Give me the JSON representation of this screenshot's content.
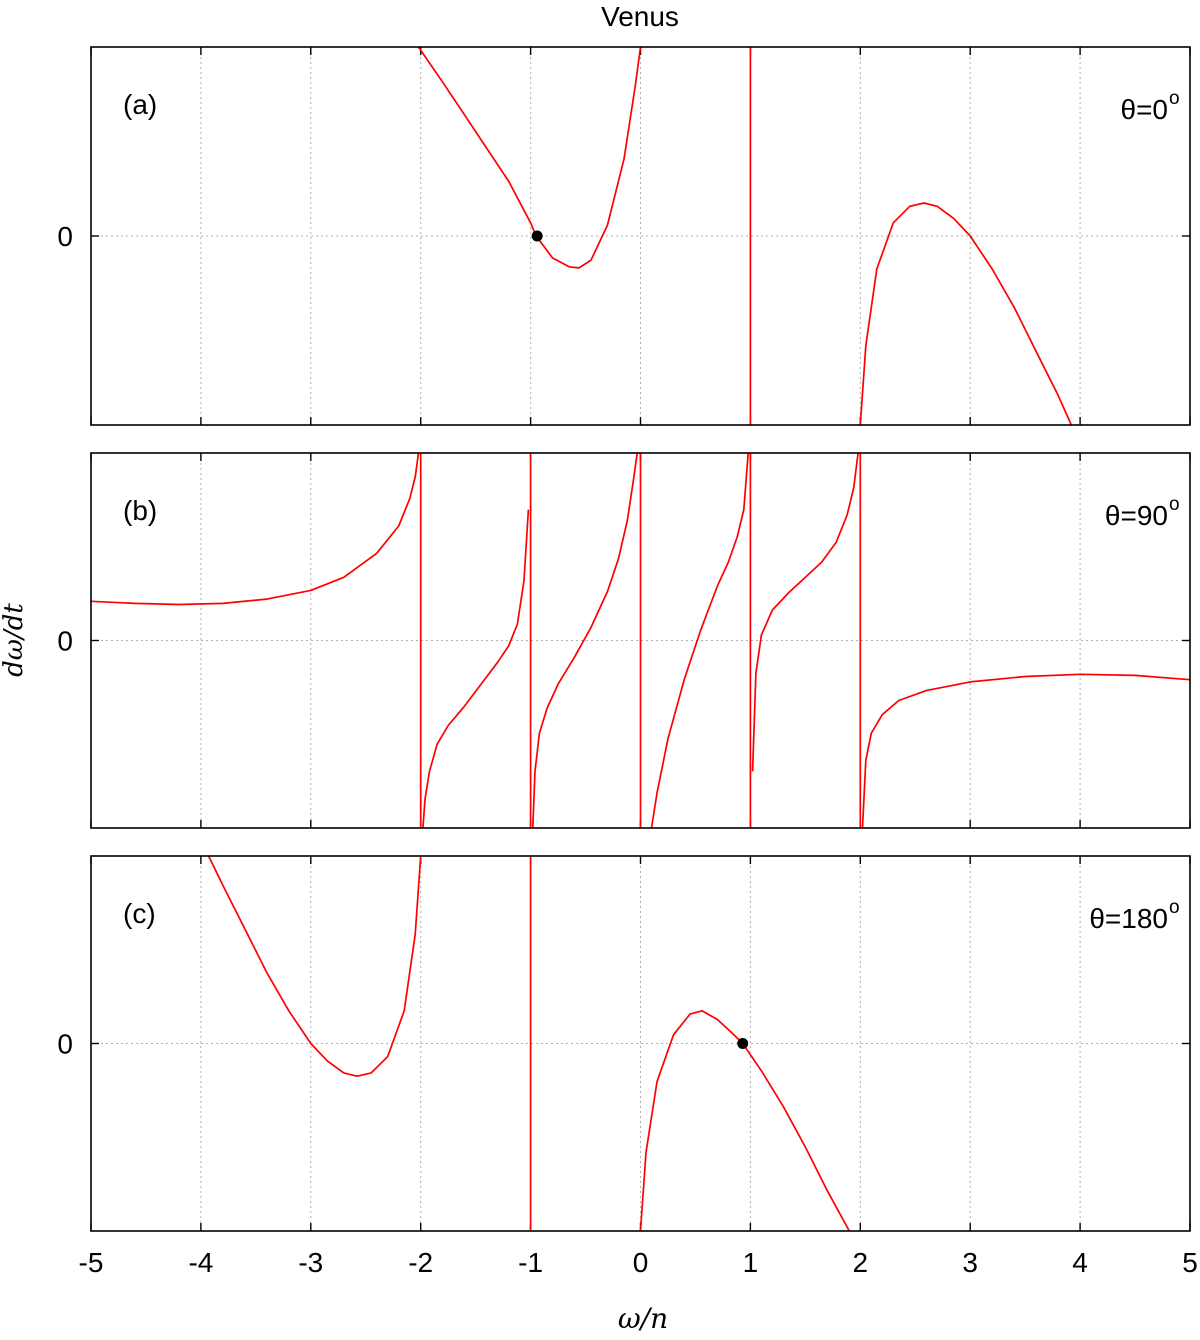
{
  "chart_data": {
    "type": "line",
    "title": "Venus",
    "xlabel": "ω/n",
    "ylabel": "dω/dt",
    "xlim": [
      -5,
      5
    ],
    "x_ticks": [
      "-5",
      "-4",
      "-3",
      "-2",
      "-1",
      "0",
      "1",
      "2",
      "3",
      "4",
      "5"
    ],
    "y_tick": "0",
    "grid": true,
    "line_color": "#ff0000",
    "marker_color": "#000000",
    "panels": [
      {
        "label": "(a)",
        "theta_label": "θ=0",
        "theta_sup": "o",
        "ylim": [
          -1.72,
          1.72
        ],
        "series": [
          {
            "x": [
              -2.02,
              -1.8,
              -1.6,
              -1.4,
              -1.2,
              -1.0,
              -0.95,
              -0.8,
              -0.65,
              -0.56,
              -0.45,
              -0.3,
              -0.15,
              -0.05,
              0.0
            ],
            "y": [
              1.72,
              1.4,
              1.1,
              0.8,
              0.5,
              0.12,
              0.0,
              -0.2,
              -0.28,
              -0.29,
              -0.22,
              0.1,
              0.7,
              1.35,
              1.72
            ]
          },
          {
            "x": [
              2.0,
              2.05,
              2.15,
              2.3,
              2.45,
              2.58,
              2.7,
              2.85,
              3.0,
              3.2,
              3.4,
              3.6,
              3.8,
              3.92
            ],
            "y": [
              -1.72,
              -1.0,
              -0.3,
              0.12,
              0.27,
              0.3,
              0.27,
              0.16,
              0.0,
              -0.3,
              -0.65,
              -1.05,
              -1.45,
              -1.72
            ]
          }
        ],
        "vertical_lines": [
          1.0
        ],
        "points": [
          {
            "x": -0.94,
            "y": 0.0
          }
        ]
      },
      {
        "label": "(b)",
        "theta_label": "θ=90",
        "theta_sup": "o",
        "ylim": [
          -1.72,
          1.72
        ],
        "series": [
          {
            "x": [
              -5.0,
              -4.6,
              -4.2,
              -3.8,
              -3.4,
              -3.0,
              -2.7,
              -2.4,
              -2.2,
              -2.1,
              -2.05,
              -2.02
            ],
            "y": [
              0.36,
              0.34,
              0.33,
              0.34,
              0.38,
              0.46,
              0.58,
              0.8,
              1.05,
              1.3,
              1.5,
              1.72
            ]
          },
          {
            "x": [
              -1.98,
              -1.96,
              -1.92,
              -1.85,
              -1.75,
              -1.6,
              -1.45,
              -1.3,
              -1.2,
              -1.12,
              -1.06,
              -1.02
            ],
            "y": [
              -1.72,
              -1.45,
              -1.2,
              -0.95,
              -0.78,
              -0.6,
              -0.4,
              -0.2,
              -0.05,
              0.15,
              0.55,
              1.2
            ]
          },
          {
            "x": [
              -0.98,
              -0.96,
              -0.92,
              -0.85,
              -0.75,
              -0.6,
              -0.45,
              -0.3,
              -0.2,
              -0.12,
              -0.06,
              -0.03
            ],
            "y": [
              -1.72,
              -1.2,
              -0.85,
              -0.62,
              -0.4,
              -0.15,
              0.12,
              0.45,
              0.75,
              1.1,
              1.5,
              1.72
            ]
          },
          {
            "x": [
              0.1,
              0.15,
              0.25,
              0.4,
              0.55,
              0.7,
              0.8,
              0.88,
              0.94,
              0.98
            ],
            "y": [
              -1.72,
              -1.4,
              -0.9,
              -0.35,
              0.1,
              0.5,
              0.72,
              0.95,
              1.2,
              1.72
            ]
          },
          {
            "x": [
              1.02,
              1.05,
              1.1,
              1.2,
              1.35,
              1.5,
              1.65,
              1.78,
              1.88,
              1.94,
              1.98
            ],
            "y": [
              -1.2,
              -0.3,
              0.05,
              0.28,
              0.44,
              0.58,
              0.72,
              0.9,
              1.15,
              1.4,
              1.72
            ]
          },
          {
            "x": [
              2.02,
              2.05,
              2.1,
              2.2,
              2.35,
              2.6,
              3.0,
              3.5,
              4.0,
              4.5,
              5.0
            ],
            "y": [
              -1.72,
              -1.1,
              -0.85,
              -0.68,
              -0.55,
              -0.46,
              -0.38,
              -0.33,
              -0.31,
              -0.32,
              -0.36
            ]
          }
        ],
        "vertical_lines": [
          -2.0,
          -1.0,
          0.0,
          1.0,
          2.0
        ],
        "points": []
      },
      {
        "label": "(c)",
        "theta_label": "θ=180",
        "theta_sup": "o",
        "ylim": [
          -1.72,
          1.72
        ],
        "series": [
          {
            "x": [
              -3.93,
              -3.8,
              -3.6,
              -3.4,
              -3.2,
              -3.0,
              -2.85,
              -2.7,
              -2.58,
              -2.45,
              -2.3,
              -2.15,
              -2.05,
              -2.0
            ],
            "y": [
              1.72,
              1.45,
              1.05,
              0.65,
              0.3,
              0.0,
              -0.16,
              -0.27,
              -0.3,
              -0.27,
              -0.12,
              0.3,
              1.0,
              1.72
            ]
          },
          {
            "x": [
              0.0,
              0.05,
              0.15,
              0.3,
              0.45,
              0.56,
              0.7,
              0.85,
              0.93,
              1.1,
              1.3,
              1.5,
              1.7,
              1.9
            ],
            "y": [
              -1.72,
              -1.0,
              -0.35,
              0.08,
              0.27,
              0.3,
              0.22,
              0.08,
              0.0,
              -0.25,
              -0.58,
              -0.95,
              -1.35,
              -1.72
            ]
          }
        ],
        "vertical_lines": [
          -1.0
        ],
        "points": [
          {
            "x": 0.93,
            "y": 0.0
          }
        ]
      }
    ]
  }
}
